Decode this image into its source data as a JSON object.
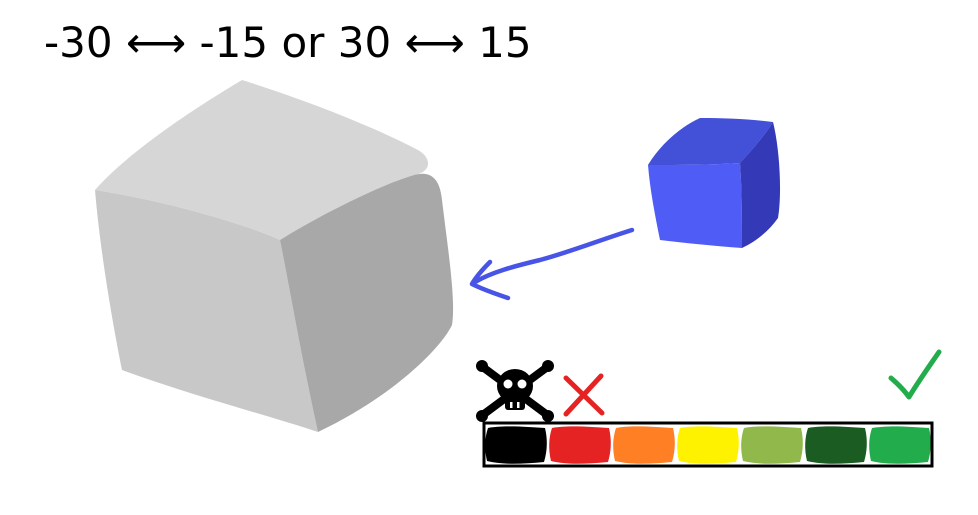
{
  "title": {
    "text": "-30 ⟷ -15  or  30 ⟷ 15"
  },
  "colors": {
    "background": "#ffffff",
    "big_cube_top": "#d6d6d6",
    "big_cube_left": "#c8c8c8",
    "big_cube_right": "#a8a8a8",
    "small_cube_front": "#4f5cf5",
    "small_cube_top": "#4350d8",
    "small_cube_right": "#3339b7",
    "arrow": "#4754e6",
    "skull": "#000000",
    "cross": "#e52323",
    "check": "#22ac4b",
    "bar_border": "#000000"
  },
  "icons": {
    "danger": "skull-crossbones-icon",
    "bad": "cross-icon",
    "good": "checkmark-icon",
    "pointer": "arrow-left-icon"
  },
  "scale": {
    "segments": [
      {
        "name": "black",
        "color": "#000000"
      },
      {
        "name": "red",
        "color": "#e52323"
      },
      {
        "name": "orange",
        "color": "#ff7f24"
      },
      {
        "name": "yellow",
        "color": "#fff200"
      },
      {
        "name": "light-green",
        "color": "#90b84a"
      },
      {
        "name": "dark-green",
        "color": "#1a5c22"
      },
      {
        "name": "green",
        "color": "#22ac4b"
      }
    ]
  }
}
